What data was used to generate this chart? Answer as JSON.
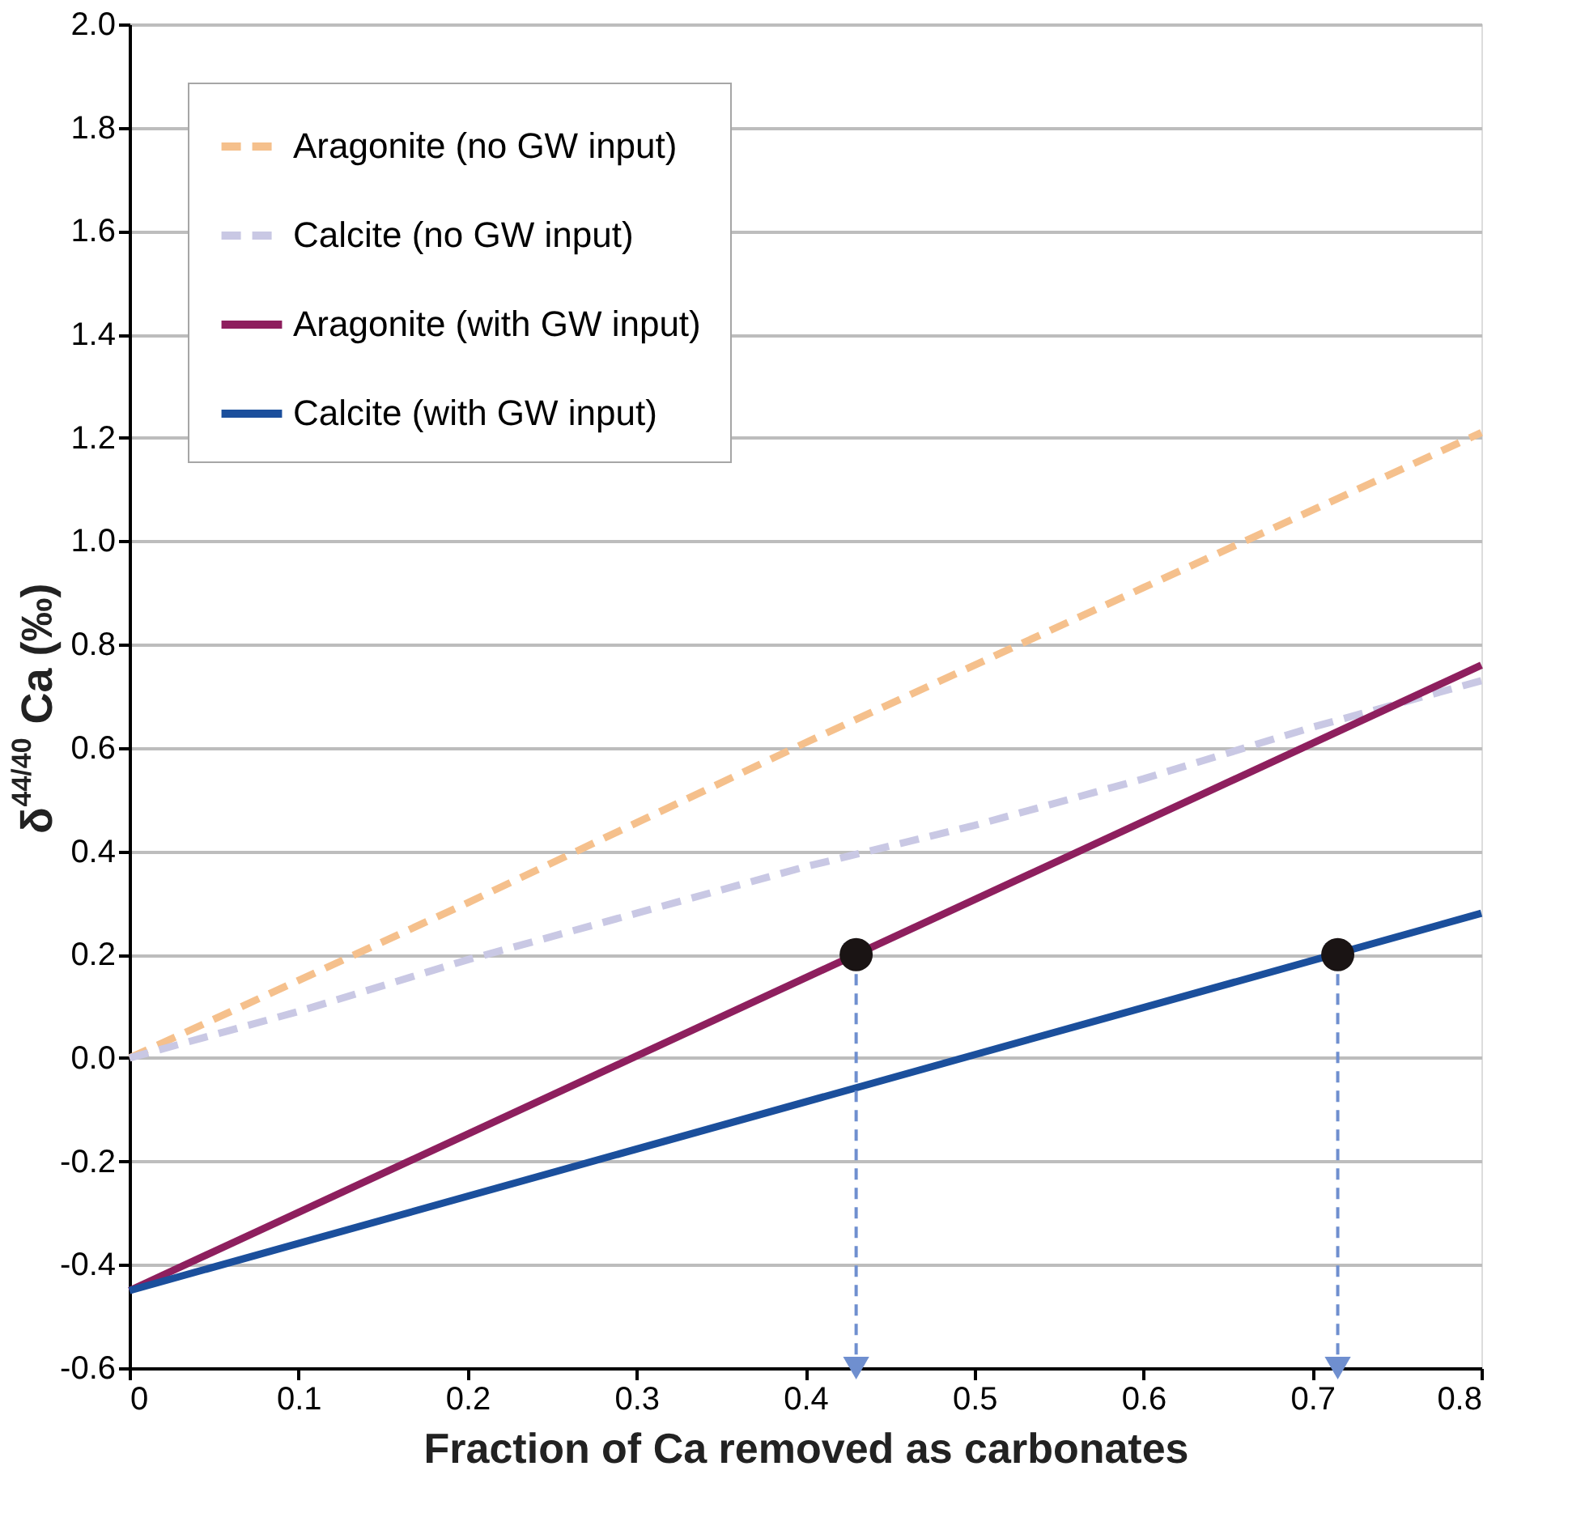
{
  "chart_data": {
    "type": "line",
    "xlabel": "Fraction of Ca removed as carbonates",
    "ylabel": "δ$^{44/40}$Ca (‰)",
    "xlim": [
      0,
      0.8
    ],
    "xticks": [
      0,
      0.1,
      0.2,
      0.3,
      0.4,
      0.5,
      0.6,
      0.7,
      0.8
    ],
    "ylim": [
      -0.6,
      2.0
    ],
    "yticks": [
      -0.6,
      -0.4,
      -0.2,
      {
        "value": 0,
        "label": "0.0"
      },
      0.2,
      0.4,
      0.6,
      0.8,
      {
        "value": 1,
        "label": "1.0"
      },
      1.2,
      1.4,
      1.6,
      1.8,
      {
        "value": 2,
        "label": "2.0"
      }
    ],
    "grid": "y",
    "legend": "top left",
    "series": [
      {
        "name": "Aragonite (no GW input)",
        "color": "#f5c08c",
        "line_style": "dashed",
        "x": [
          0,
          0.2,
          0.4,
          0.6,
          0.8
        ],
        "values": [
          0,
          0.3,
          0.61,
          0.91,
          1.21
        ]
      },
      {
        "name": "Calcite (no GW input)",
        "color": "#c9c8e4",
        "line_style": "dashed",
        "x": [
          0,
          0.1,
          0.2,
          0.3,
          0.4,
          0.5,
          0.6,
          0.7,
          0.8
        ],
        "values": [
          0,
          0.09,
          0.19,
          0.28,
          0.37,
          0.45,
          0.54,
          0.64,
          0.73
        ]
      },
      {
        "name": "Aragonite (with GW input)",
        "color": "#8e1f5e",
        "line_style": "solid",
        "x": [
          0,
          0.8
        ],
        "values": [
          -0.45,
          0.76
        ]
      },
      {
        "name": "Calcite (with GW input)",
        "color": "#1b4f9c",
        "line_style": "solid",
        "x": [
          0,
          0.8
        ],
        "values": [
          -0.45,
          0.28
        ]
      },
      {
        "type": "line",
        "color": "#6f8fcf",
        "line_style": "dashed",
        "marker": "triangle",
        "x": [
          0.43,
          0.43
        ],
        "values": [
          0.2,
          -0.6
        ]
      },
      {
        "type": "line",
        "color": "#6f8fcf",
        "line_style": "dashed",
        "marker": "triangle",
        "x": [
          0.715,
          0.715
        ],
        "values": [
          0.2,
          -0.6
        ]
      },
      {
        "type": "scatter",
        "color": "#1a1414",
        "marker": "circle",
        "x": [
          0.43,
          0.715
        ],
        "values": [
          0.2,
          0.2
        ]
      }
    ]
  }
}
